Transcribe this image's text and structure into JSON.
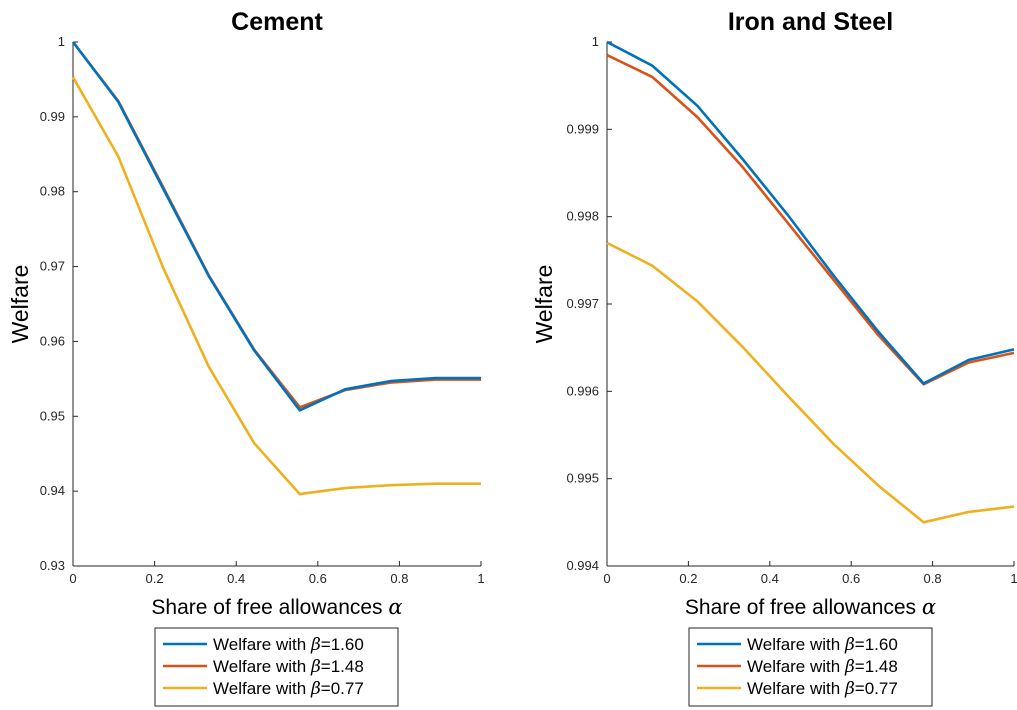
{
  "chart_data": [
    {
      "type": "line",
      "title": "Cement",
      "xlabel": "Share of free allowances",
      "xlabel_symbol": "α",
      "ylabel": "Welfare",
      "xlim": [
        0,
        1
      ],
      "ylim": [
        0.93,
        1
      ],
      "xticks": [
        "0",
        "0.2",
        "0.4",
        "0.6",
        "0.8",
        "1"
      ],
      "xtick_values": [
        0,
        0.2,
        0.4,
        0.6,
        0.8,
        1
      ],
      "yticks": [
        "0.93",
        "0.94",
        "0.95",
        "0.96",
        "0.97",
        "0.98",
        "0.99",
        "1"
      ],
      "ytick_values": [
        0.93,
        0.94,
        0.95,
        0.96,
        0.97,
        0.98,
        0.99,
        1
      ],
      "x": [
        0,
        0.111,
        0.222,
        0.333,
        0.444,
        0.556,
        0.667,
        0.778,
        0.889,
        1
      ],
      "series": [
        {
          "name": "Welfare with β=1.60",
          "legend_prefix": "Welfare with ",
          "legend_symbol": "β",
          "legend_value": "=1.60",
          "color": "#0072BD",
          "values": [
            1.0,
            0.992,
            0.9803,
            0.9687,
            0.9588,
            0.9508,
            0.9536,
            0.9547,
            0.9551,
            0.9551
          ]
        },
        {
          "name": "Welfare with β=1.48",
          "legend_prefix": "Welfare with ",
          "legend_symbol": "β",
          "legend_value": "=1.48",
          "color": "#D95319",
          "values": [
            1.0,
            0.9921,
            0.9805,
            0.9688,
            0.9589,
            0.9512,
            0.9535,
            0.9545,
            0.9549,
            0.9549
          ]
        },
        {
          "name": "Welfare with β=0.77",
          "legend_prefix": "Welfare with ",
          "legend_symbol": "β",
          "legend_value": "=0.77",
          "color": "#EDB120",
          "values": [
            0.9953,
            0.9847,
            0.9697,
            0.9566,
            0.9464,
            0.9396,
            0.9404,
            0.9408,
            0.941,
            0.941
          ]
        }
      ],
      "legend": "bottom"
    },
    {
      "type": "line",
      "title": "Iron and Steel",
      "xlabel": "Share of free allowances",
      "xlabel_symbol": "α",
      "ylabel": "Welfare",
      "xlim": [
        0,
        1
      ],
      "ylim": [
        0.994,
        1
      ],
      "xticks": [
        "0",
        "0.2",
        "0.4",
        "0.6",
        "0.8",
        "1"
      ],
      "xtick_values": [
        0,
        0.2,
        0.4,
        0.6,
        0.8,
        1
      ],
      "yticks": [
        "0.994",
        "0.995",
        "0.996",
        "0.997",
        "0.998",
        "0.999",
        "1"
      ],
      "ytick_values": [
        0.994,
        0.995,
        0.996,
        0.997,
        0.998,
        0.999,
        1
      ],
      "x": [
        0,
        0.111,
        0.222,
        0.333,
        0.444,
        0.556,
        0.667,
        0.778,
        0.889,
        1
      ],
      "series": [
        {
          "name": "Welfare with β=1.60",
          "legend_prefix": "Welfare with ",
          "legend_symbol": "β",
          "legend_value": "=1.60",
          "color": "#0072BD",
          "values": [
            1.0,
            0.99973,
            0.99927,
            0.99866,
            0.99802,
            0.99733,
            0.99668,
            0.99609,
            0.99636,
            0.99648
          ]
        },
        {
          "name": "Welfare with β=1.48",
          "legend_prefix": "Welfare with ",
          "legend_symbol": "β",
          "legend_value": "=1.48",
          "color": "#D95319",
          "values": [
            0.99985,
            0.9996,
            0.99914,
            0.99857,
            0.99793,
            0.99728,
            0.99664,
            0.99608,
            0.99633,
            0.99644
          ]
        },
        {
          "name": "Welfare with β=0.77",
          "legend_prefix": "Welfare with ",
          "legend_symbol": "β",
          "legend_value": "=0.77",
          "color": "#EDB120",
          "values": [
            0.9977,
            0.99744,
            0.99703,
            0.99651,
            0.99595,
            0.9954,
            0.99492,
            0.9945,
            0.99462,
            0.99468
          ]
        }
      ],
      "legend": "bottom"
    }
  ]
}
